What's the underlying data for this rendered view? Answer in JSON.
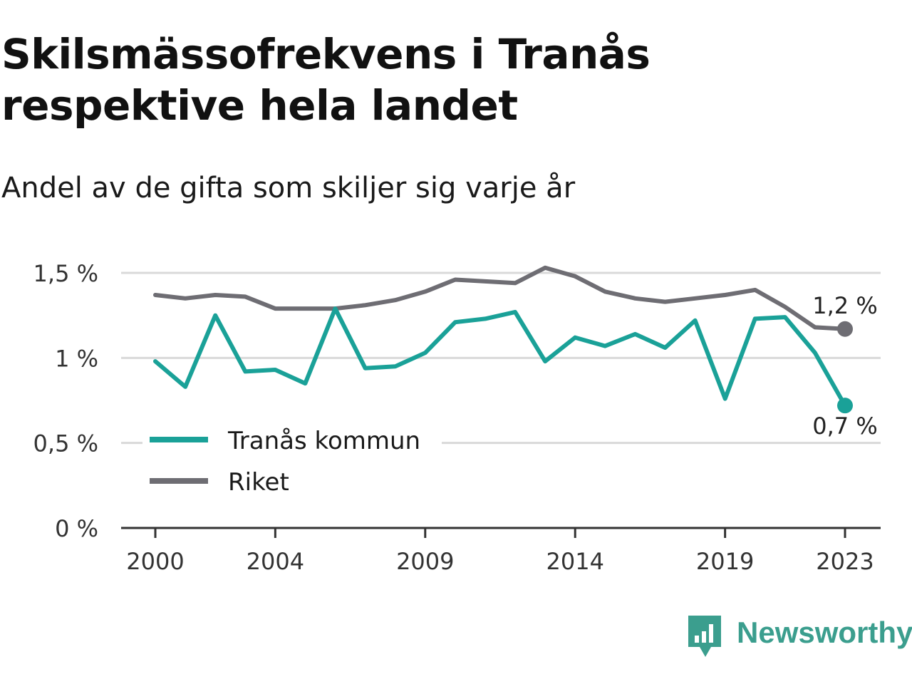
{
  "header": {
    "title": "Skilsmässofrekvens i Tranås respektive hela landet",
    "subtitle": "Andel av de gifta som skiljer sig varje år"
  },
  "brand": {
    "name": "Newsworthy",
    "logo_icon": "bar-chart-speech-bubble-icon",
    "color": "#3b9e8e"
  },
  "chart_data": {
    "type": "line",
    "x": [
      2000,
      2001,
      2002,
      2003,
      2004,
      2005,
      2006,
      2007,
      2008,
      2009,
      2010,
      2011,
      2012,
      2013,
      2014,
      2015,
      2016,
      2017,
      2018,
      2019,
      2020,
      2021,
      2022,
      2023
    ],
    "x_ticks": [
      2000,
      2004,
      2009,
      2014,
      2019,
      2023
    ],
    "x_tick_labels": [
      "2000",
      "2004",
      "2009",
      "2014",
      "2019",
      "2023"
    ],
    "ylim": [
      0,
      1.5
    ],
    "y_ticks": [
      0,
      0.5,
      1,
      1.5
    ],
    "y_tick_labels": [
      "0 %",
      "0,5 %",
      "1 %",
      "1,5 %"
    ],
    "grid": true,
    "legend_position": "bottom-left",
    "series": [
      {
        "name": "Tranås kommun",
        "color": "#1aa198",
        "values": [
          0.98,
          0.83,
          1.25,
          0.92,
          0.93,
          0.85,
          1.29,
          0.94,
          0.95,
          1.03,
          1.21,
          1.23,
          1.27,
          0.98,
          1.12,
          1.07,
          1.14,
          1.06,
          1.22,
          0.76,
          1.23,
          1.24,
          1.03,
          0.72
        ],
        "end_label": "0,7 %"
      },
      {
        "name": "Riket",
        "color": "#6e6d73",
        "values": [
          1.37,
          1.35,
          1.37,
          1.36,
          1.29,
          1.29,
          1.29,
          1.31,
          1.34,
          1.39,
          1.46,
          1.45,
          1.44,
          1.53,
          1.48,
          1.39,
          1.35,
          1.33,
          1.35,
          1.37,
          1.4,
          1.3,
          1.18,
          1.17
        ],
        "end_label": "1,2 %"
      }
    ]
  }
}
